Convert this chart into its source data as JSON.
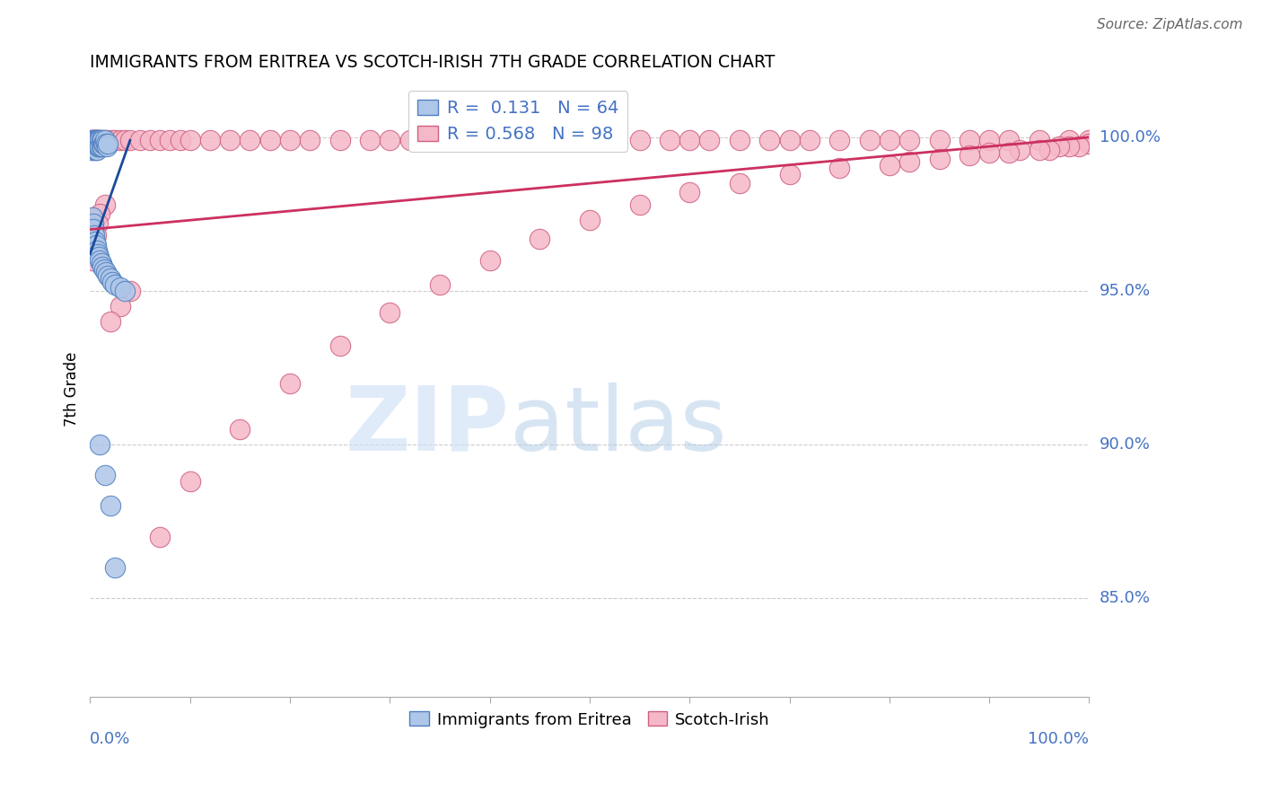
{
  "title": "IMMIGRANTS FROM ERITREA VS SCOTCH-IRISH 7TH GRADE CORRELATION CHART",
  "source": "Source: ZipAtlas.com",
  "ylabel": "7th Grade",
  "ylabel_ticks": [
    "85.0%",
    "90.0%",
    "95.0%",
    "100.0%"
  ],
  "ylabel_tick_vals": [
    0.85,
    0.9,
    0.95,
    1.0
  ],
  "xmin": 0.0,
  "xmax": 1.0,
  "ymin": 0.818,
  "ymax": 1.018,
  "blue_R": 0.131,
  "blue_N": 64,
  "pink_R": 0.568,
  "pink_N": 98,
  "blue_color": "#aec6e8",
  "blue_edge_color": "#5080c0",
  "pink_color": "#f5b8c8",
  "pink_edge_color": "#d06080",
  "blue_line_color": "#1a4a9a",
  "pink_line_color": "#cc3060",
  "grid_color": "#cccccc",
  "blue_line_x0": 0.0,
  "blue_line_y0": 0.962,
  "blue_line_x1": 0.04,
  "blue_line_y1": 0.999,
  "pink_line_x0": 0.0,
  "pink_line_y0": 0.97,
  "pink_line_x1": 1.0,
  "pink_line_y1": 1.0,
  "blue_x": [
    0.001,
    0.001,
    0.001,
    0.002,
    0.002,
    0.002,
    0.002,
    0.003,
    0.003,
    0.003,
    0.003,
    0.004,
    0.004,
    0.004,
    0.005,
    0.005,
    0.005,
    0.006,
    0.006,
    0.006,
    0.007,
    0.007,
    0.007,
    0.008,
    0.008,
    0.008,
    0.009,
    0.009,
    0.01,
    0.01,
    0.011,
    0.011,
    0.012,
    0.012,
    0.013,
    0.014,
    0.015,
    0.016,
    0.017,
    0.018,
    0.002,
    0.003,
    0.003,
    0.004,
    0.005,
    0.006,
    0.007,
    0.008,
    0.009,
    0.01,
    0.011,
    0.012,
    0.014,
    0.016,
    0.018,
    0.02,
    0.022,
    0.025,
    0.03,
    0.035,
    0.01,
    0.015,
    0.02,
    0.025
  ],
  "blue_y": [
    0.999,
    0.998,
    0.997,
    0.999,
    0.998,
    0.997,
    0.996,
    0.999,
    0.998,
    0.997,
    0.996,
    0.999,
    0.998,
    0.997,
    0.999,
    0.998,
    0.997,
    0.999,
    0.998,
    0.996,
    0.999,
    0.998,
    0.996,
    0.999,
    0.998,
    0.997,
    0.999,
    0.997,
    0.999,
    0.997,
    0.999,
    0.997,
    0.999,
    0.997,
    0.998,
    0.998,
    0.999,
    0.998,
    0.997,
    0.998,
    0.974,
    0.972,
    0.97,
    0.968,
    0.966,
    0.965,
    0.963,
    0.962,
    0.961,
    0.96,
    0.959,
    0.958,
    0.957,
    0.956,
    0.955,
    0.954,
    0.953,
    0.952,
    0.951,
    0.95,
    0.9,
    0.89,
    0.88,
    0.86
  ],
  "pink_x": [
    0.001,
    0.002,
    0.003,
    0.004,
    0.005,
    0.006,
    0.007,
    0.008,
    0.009,
    0.01,
    0.012,
    0.015,
    0.018,
    0.022,
    0.025,
    0.03,
    0.035,
    0.04,
    0.05,
    0.06,
    0.07,
    0.08,
    0.09,
    0.1,
    0.12,
    0.14,
    0.16,
    0.18,
    0.2,
    0.22,
    0.25,
    0.28,
    0.3,
    0.32,
    0.35,
    0.38,
    0.4,
    0.42,
    0.45,
    0.48,
    0.5,
    0.52,
    0.55,
    0.58,
    0.6,
    0.62,
    0.65,
    0.68,
    0.7,
    0.72,
    0.75,
    0.78,
    0.8,
    0.82,
    0.85,
    0.88,
    0.9,
    0.92,
    0.95,
    0.98,
    1.0,
    1.0,
    0.99,
    0.98,
    0.97,
    0.96,
    0.95,
    0.93,
    0.92,
    0.9,
    0.88,
    0.85,
    0.82,
    0.8,
    0.75,
    0.7,
    0.65,
    0.6,
    0.55,
    0.5,
    0.45,
    0.4,
    0.35,
    0.3,
    0.25,
    0.2,
    0.15,
    0.1,
    0.07,
    0.04,
    0.03,
    0.02,
    0.015,
    0.01,
    0.008,
    0.006,
    0.004,
    0.002
  ],
  "pink_y": [
    0.999,
    0.999,
    0.999,
    0.999,
    0.999,
    0.999,
    0.999,
    0.999,
    0.999,
    0.999,
    0.999,
    0.999,
    0.999,
    0.999,
    0.999,
    0.999,
    0.999,
    0.999,
    0.999,
    0.999,
    0.999,
    0.999,
    0.999,
    0.999,
    0.999,
    0.999,
    0.999,
    0.999,
    0.999,
    0.999,
    0.999,
    0.999,
    0.999,
    0.999,
    0.999,
    0.999,
    0.999,
    0.999,
    0.999,
    0.999,
    0.999,
    0.999,
    0.999,
    0.999,
    0.999,
    0.999,
    0.999,
    0.999,
    0.999,
    0.999,
    0.999,
    0.999,
    0.999,
    0.999,
    0.999,
    0.999,
    0.999,
    0.999,
    0.999,
    0.999,
    0.999,
    0.998,
    0.997,
    0.997,
    0.997,
    0.996,
    0.996,
    0.996,
    0.995,
    0.995,
    0.994,
    0.993,
    0.992,
    0.991,
    0.99,
    0.988,
    0.985,
    0.982,
    0.978,
    0.973,
    0.967,
    0.96,
    0.952,
    0.943,
    0.932,
    0.92,
    0.905,
    0.888,
    0.87,
    0.95,
    0.945,
    0.94,
    0.978,
    0.975,
    0.972,
    0.968,
    0.964,
    0.96
  ]
}
